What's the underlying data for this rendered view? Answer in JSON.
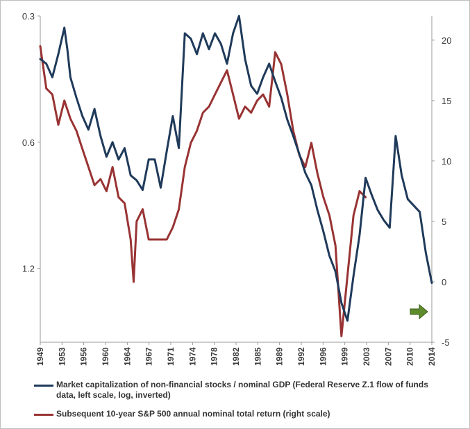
{
  "chart_data": {
    "type": "line",
    "title": "",
    "x_ticks": [
      "1949",
      "1953",
      "1956",
      "1960",
      "1964",
      "1967",
      "1971",
      "1974",
      "1978",
      "1982",
      "1985",
      "1989",
      "1992",
      "1996",
      "1999",
      "2003",
      "2007",
      "2010",
      "2014"
    ],
    "left_axis": {
      "scale": "log",
      "inverted": true,
      "ticks": [
        "0.3",
        "0.6",
        "1.2"
      ],
      "ylim": [
        0.3,
        1.8
      ]
    },
    "right_axis": {
      "ticks": [
        "20",
        "15",
        "10",
        "5",
        "0",
        "-5"
      ],
      "ylim": [
        -5,
        22
      ]
    },
    "legend_placement": "bottom",
    "colors": {
      "series1": "#1f3a5a",
      "series2": "#993333",
      "arrow": "#5e8c2d"
    },
    "series": [
      {
        "name": "Market capitalization of non-financial stocks / nominal GDP (Federal Reserve Z.1 flow of funds data, left scale, log, inverted)",
        "axis": "left",
        "x": [
          1949,
          1950,
          1951,
          1952,
          1953,
          1953.5,
          1954,
          1955,
          1956,
          1957,
          1958,
          1959,
          1960,
          1961,
          1962,
          1963,
          1964,
          1965,
          1966,
          1967,
          1968,
          1969,
          1970,
          1971,
          1972,
          1973,
          1974,
          1975,
          1976,
          1977,
          1978,
          1979,
          1980,
          1981,
          1982,
          1983,
          1984,
          1985,
          1986,
          1987,
          1988,
          1989,
          1990,
          1991,
          1992,
          1993,
          1994,
          1995,
          1996,
          1997,
          1998,
          1999,
          2000,
          2001,
          2002,
          2003,
          2004,
          2005,
          2006,
          2007,
          2008,
          2009,
          2010,
          2011,
          2012,
          2013,
          2014
        ],
        "values": [
          0.38,
          0.39,
          0.42,
          0.37,
          0.32,
          0.36,
          0.42,
          0.47,
          0.52,
          0.56,
          0.5,
          0.58,
          0.65,
          0.6,
          0.66,
          0.62,
          0.72,
          0.74,
          0.78,
          0.66,
          0.66,
          0.77,
          0.63,
          0.52,
          0.62,
          0.33,
          0.34,
          0.37,
          0.33,
          0.36,
          0.33,
          0.35,
          0.39,
          0.33,
          0.3,
          0.38,
          0.44,
          0.46,
          0.42,
          0.39,
          0.43,
          0.47,
          0.53,
          0.58,
          0.64,
          0.71,
          0.76,
          0.87,
          0.98,
          1.12,
          1.22,
          1.45,
          1.6,
          1.25,
          1.0,
          0.73,
          0.8,
          0.87,
          0.92,
          0.96,
          0.58,
          0.72,
          0.82,
          0.85,
          0.88,
          1.1,
          1.3
        ]
      },
      {
        "name": "Subsequent 10-year S&P 500 annual nominal total return (right scale)",
        "axis": "right",
        "x": [
          1949,
          1950,
          1951,
          1952,
          1953,
          1954,
          1955,
          1956,
          1957,
          1958,
          1959,
          1960,
          1961,
          1962,
          1963,
          1964,
          1964.5,
          1965,
          1966,
          1967,
          1968,
          1969,
          1970,
          1971,
          1972,
          1973,
          1974,
          1975,
          1976,
          1977,
          1978,
          1979,
          1980,
          1981,
          1982,
          1983,
          1984,
          1985,
          1986,
          1987,
          1988,
          1989,
          1990,
          1991,
          1992,
          1993,
          1994,
          1995,
          1996,
          1997,
          1998,
          1999,
          2000,
          2001,
          2002,
          2003
        ],
        "values": [
          19.5,
          16.0,
          15.5,
          13.0,
          15.0,
          13.5,
          12.5,
          11.0,
          9.5,
          8.0,
          8.5,
          7.5,
          9.5,
          7.0,
          6.5,
          3.5,
          0.0,
          5.0,
          6.0,
          3.5,
          3.5,
          3.5,
          3.5,
          4.5,
          6.0,
          9.5,
          11.5,
          12.5,
          14.0,
          14.5,
          15.5,
          16.5,
          17.5,
          15.5,
          13.5,
          14.5,
          14.0,
          15.0,
          15.5,
          14.5,
          19.0,
          18.0,
          15.5,
          12.5,
          10.5,
          9.5,
          11.5,
          9.0,
          7.0,
          5.5,
          3.0,
          -4.5,
          0.5,
          5.5,
          7.5,
          7.0
        ]
      }
    ]
  }
}
